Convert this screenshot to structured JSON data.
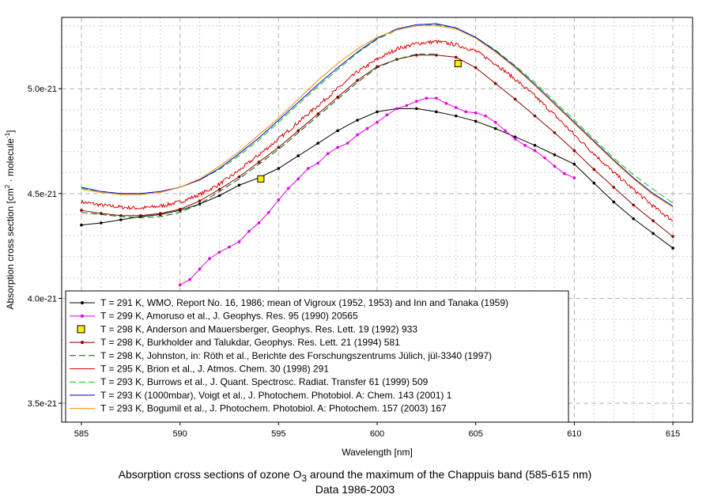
{
  "chart_data": {
    "type": "line",
    "xlabel": "Wavelength [nm]",
    "ylabel_pre": "Absorption cross section [cm",
    "ylabel_sup1": "2",
    "ylabel_mid": " · molecule",
    "ylabel_sup2": "-1",
    "ylabel_post": "]",
    "xlim": [
      584,
      616
    ],
    "ylim": [
      3.41e-21,
      5.34e-21
    ],
    "x_ticks": [
      585,
      590,
      595,
      600,
      605,
      610,
      615
    ],
    "x_tick_labels": [
      "585",
      "590",
      "595",
      "600",
      "605",
      "610",
      "615"
    ],
    "y_ticks": [
      3.5e-21,
      4e-21,
      4.5e-21,
      5e-21
    ],
    "y_tick_labels": [
      "3.5e-21",
      "4.0e-21",
      "4.5e-21",
      "5.0e-21"
    ],
    "grid": true,
    "legend_position": "bottom-left",
    "caption_line1_pre": "Absorption cross sections of ozone O",
    "caption_line1_sub": "3",
    "caption_line1_post": " around the maximum of the Chappuis band (585-615 nm)",
    "caption_line2": "Data 1986-2003",
    "series": [
      {
        "name": "T = 291 K, WMO, Report No. 16, 1986; mean of Vigroux (1952, 1953) and Inn and Tanaka (1959)",
        "color": "#000000",
        "dash": "",
        "marker": "dot",
        "noise": 0,
        "x": [
          585,
          586,
          587,
          588,
          589,
          590,
          591,
          592,
          593,
          594,
          595,
          596,
          597,
          598,
          599,
          600,
          601,
          602,
          603,
          604,
          605,
          606,
          607,
          608,
          609,
          610,
          611,
          612,
          613,
          614,
          615
        ],
        "y": [
          4.35e-21,
          4.36e-21,
          4.375e-21,
          4.39e-21,
          4.4e-21,
          4.42e-21,
          4.45e-21,
          4.49e-21,
          4.54e-21,
          4.575e-21,
          4.62e-21,
          4.68e-21,
          4.74e-21,
          4.8e-21,
          4.85e-21,
          4.89e-21,
          4.905e-21,
          4.905e-21,
          4.89e-21,
          4.87e-21,
          4.845e-21,
          4.81e-21,
          4.77e-21,
          4.73e-21,
          4.685e-21,
          4.64e-21,
          4.55e-21,
          4.46e-21,
          4.38e-21,
          4.31e-21,
          4.24e-21
        ]
      },
      {
        "name": "T = 299 K, Amoruso et al., J. Geophys. Res. 95 (1990) 20565",
        "color": "#e100e1",
        "dash": "",
        "marker": "dot",
        "noise": 0,
        "x": [
          590,
          590.5,
          591,
          591.5,
          592,
          592.5,
          593,
          593.5,
          594,
          594.5,
          595,
          595.5,
          596,
          596.5,
          597,
          597.5,
          598,
          598.5,
          599,
          599.5,
          600,
          600.5,
          601,
          601.5,
          602,
          602.5,
          603,
          603.5,
          604,
          604.5,
          605,
          605.5,
          606,
          606.5,
          607,
          607.5,
          608,
          608.5,
          609,
          609.5,
          610
        ],
        "y": [
          4.065e-21,
          4.09e-21,
          4.14e-21,
          4.19e-21,
          4.22e-21,
          4.245e-21,
          4.27e-21,
          4.32e-21,
          4.36e-21,
          4.41e-21,
          4.47e-21,
          4.525e-21,
          4.57e-21,
          4.62e-21,
          4.645e-21,
          4.69e-21,
          4.72e-21,
          4.74e-21,
          4.78e-21,
          4.81e-21,
          4.84e-21,
          4.875e-21,
          4.905e-21,
          4.92e-21,
          4.94e-21,
          4.955e-21,
          4.955e-21,
          4.93e-21,
          4.91e-21,
          4.89e-21,
          4.885e-21,
          4.87e-21,
          4.84e-21,
          4.8e-21,
          4.76e-21,
          4.73e-21,
          4.705e-21,
          4.67e-21,
          4.63e-21,
          4.595e-21,
          4.575e-21
        ]
      },
      {
        "name": "T = 298 K, Anderson and Mauersberger, Geophys. Res. Lett. 19 (1992) 933",
        "color": "#000000",
        "fill": "#ffee00",
        "dash": "",
        "marker": "square",
        "noise": 0,
        "no_line": true,
        "x": [
          594.1,
          604.1
        ],
        "y": [
          4.57e-21,
          5.12e-21
        ]
      },
      {
        "name": "T = 298 K, Burkholder and Talukdar, Geophys. Res. Lett. 21 (1994) 581",
        "color": "#8b0000",
        "dash": "",
        "marker": "dot",
        "noise": 0,
        "x": [
          585,
          586,
          587,
          588,
          589,
          590,
          591,
          592,
          593,
          594,
          595,
          596,
          597,
          598,
          599,
          600,
          601,
          602,
          603,
          604,
          605,
          606,
          607,
          608,
          609,
          610,
          611,
          612,
          613,
          614,
          615
        ],
        "y": [
          4.42e-21,
          4.405e-21,
          4.395e-21,
          4.395e-21,
          4.405e-21,
          4.425e-21,
          4.465e-21,
          4.52e-21,
          4.58e-21,
          4.65e-21,
          4.72e-21,
          4.8e-21,
          4.88e-21,
          4.96e-21,
          5.04e-21,
          5.105e-21,
          5.14e-21,
          5.16e-21,
          5.16e-21,
          5.15e-21,
          5.1e-21,
          5.025e-21,
          4.95e-21,
          4.87e-21,
          4.79e-21,
          4.705e-21,
          4.615e-21,
          4.53e-21,
          4.445e-21,
          4.37e-21,
          4.295e-21
        ]
      },
      {
        "name": "T = 298 K, Johnston, in: Röth et al., Berichte des Forschungszentrums Jülich, jül-3340 (1997)",
        "color": "#006400",
        "dash": "8,4",
        "marker": "none",
        "noise": 0,
        "x": [
          585,
          586,
          587,
          588,
          589,
          590,
          591,
          592,
          593,
          594,
          595,
          596,
          597,
          598,
          599,
          600,
          601,
          602,
          603
        ],
        "y": [
          4.41e-21,
          4.4e-21,
          4.39e-21,
          4.385e-21,
          4.39e-21,
          4.41e-21,
          4.45e-21,
          4.51e-21,
          4.57e-21,
          4.64e-21,
          4.71e-21,
          4.79e-21,
          4.87e-21,
          4.95e-21,
          5.03e-21,
          5.1e-21,
          5.14e-21,
          5.165e-21,
          5.165e-21
        ]
      },
      {
        "name": "T = 295 K, Brion et al., J. Atmos. Chem. 30 (1998) 291",
        "color": "#e00000",
        "dash": "",
        "marker": "none",
        "noise": 0.009,
        "x": [
          585,
          586,
          587,
          588,
          589,
          590,
          591,
          592,
          593,
          594,
          595,
          596,
          597,
          598,
          599,
          600,
          601,
          602,
          603,
          604,
          605,
          606,
          607,
          608,
          609,
          610,
          611,
          612,
          613,
          614,
          615
        ],
        "y": [
          4.46e-21,
          4.445e-21,
          4.435e-21,
          4.43e-21,
          4.44e-21,
          4.46e-21,
          4.495e-21,
          4.545e-21,
          4.61e-21,
          4.685e-21,
          4.76e-21,
          4.84e-21,
          4.92e-21,
          5e-21,
          5.08e-21,
          5.14e-21,
          5.19e-21,
          5.215e-21,
          5.225e-21,
          5.21e-21,
          5.18e-21,
          5.12e-21,
          5.045e-21,
          4.965e-21,
          4.875e-21,
          4.78e-21,
          4.69e-21,
          4.6e-21,
          4.52e-21,
          4.44e-21,
          4.37e-21
        ]
      },
      {
        "name": "T = 293 K, Burrows et al., J. Quant. Spectrosc. Radiat. Transfer 61 (1999) 509",
        "color": "#00cc00",
        "dash": "8,4",
        "marker": "none",
        "noise": 0,
        "x": [
          585,
          586,
          587,
          588,
          589,
          590,
          591,
          592,
          593,
          594,
          595,
          596,
          597,
          598,
          599,
          600,
          601,
          602,
          603,
          604,
          605,
          606,
          607,
          608,
          609,
          610,
          611,
          612,
          613,
          614,
          615
        ],
        "y": [
          4.525e-21,
          4.51e-21,
          4.5e-21,
          4.5e-21,
          4.51e-21,
          4.53e-21,
          4.565e-21,
          4.615e-21,
          4.68e-21,
          4.755e-21,
          4.84e-21,
          4.925e-21,
          5.01e-21,
          5.09e-21,
          5.17e-21,
          5.235e-21,
          5.28e-21,
          5.3e-21,
          5.305e-21,
          5.29e-21,
          5.245e-21,
          5.185e-21,
          5.11e-21,
          5.03e-21,
          4.94e-21,
          4.85e-21,
          4.76e-21,
          4.67e-21,
          4.59e-21,
          4.52e-21,
          4.455e-21
        ]
      },
      {
        "name": "T = 293 K (1000mbar), Voigt et al., J. Photochem. Photobiol. A: Chem. 143 (2001) 1",
        "color": "#0000cc",
        "dash": "",
        "marker": "none",
        "noise": 0,
        "x": [
          585,
          586,
          587,
          588,
          589,
          590,
          591,
          592,
          593,
          594,
          595,
          596,
          597,
          598,
          599,
          600,
          601,
          602,
          603,
          604,
          605,
          606,
          607,
          608,
          609,
          610,
          611,
          612,
          613,
          614,
          615
        ],
        "y": [
          4.53e-21,
          4.51e-21,
          4.5e-21,
          4.5e-21,
          4.51e-21,
          4.53e-21,
          4.565e-21,
          4.62e-21,
          4.69e-21,
          4.765e-21,
          4.85e-21,
          4.935e-21,
          5.02e-21,
          5.1e-21,
          5.175e-21,
          5.24e-21,
          5.285e-21,
          5.305e-21,
          5.31e-21,
          5.29e-21,
          5.245e-21,
          5.18e-21,
          5.105e-21,
          5.02e-21,
          4.93e-21,
          4.84e-21,
          4.75e-21,
          4.66e-21,
          4.575e-21,
          4.5e-21,
          4.44e-21
        ]
      },
      {
        "name": "T = 293 K, Bogumil et al., J. Photochem. Photobiol. A: Photochem. 157 (2003) 167",
        "color": "#ff8c00",
        "dash": "",
        "marker": "none",
        "noise": 0,
        "x": [
          585,
          586,
          587,
          588,
          589,
          590,
          591,
          592,
          593,
          594,
          595,
          596,
          597,
          598,
          599,
          600,
          601,
          602,
          603,
          604,
          605,
          606,
          607,
          608,
          609,
          610,
          611,
          612,
          613,
          614,
          615
        ],
        "y": [
          4.52e-21,
          4.505e-21,
          4.495e-21,
          4.495e-21,
          4.505e-21,
          4.53e-21,
          4.57e-21,
          4.63e-21,
          4.7e-21,
          4.78e-21,
          4.86e-21,
          4.95e-21,
          5.04e-21,
          5.12e-21,
          5.19e-21,
          5.245e-21,
          5.28e-21,
          5.3e-21,
          5.3e-21,
          5.285e-21,
          5.24e-21,
          5.175e-21,
          5.1e-21,
          5.015e-21,
          4.925e-21,
          4.835e-21,
          4.745e-21,
          4.655e-21,
          4.57e-21,
          4.495e-21,
          4.435e-21
        ]
      }
    ]
  }
}
